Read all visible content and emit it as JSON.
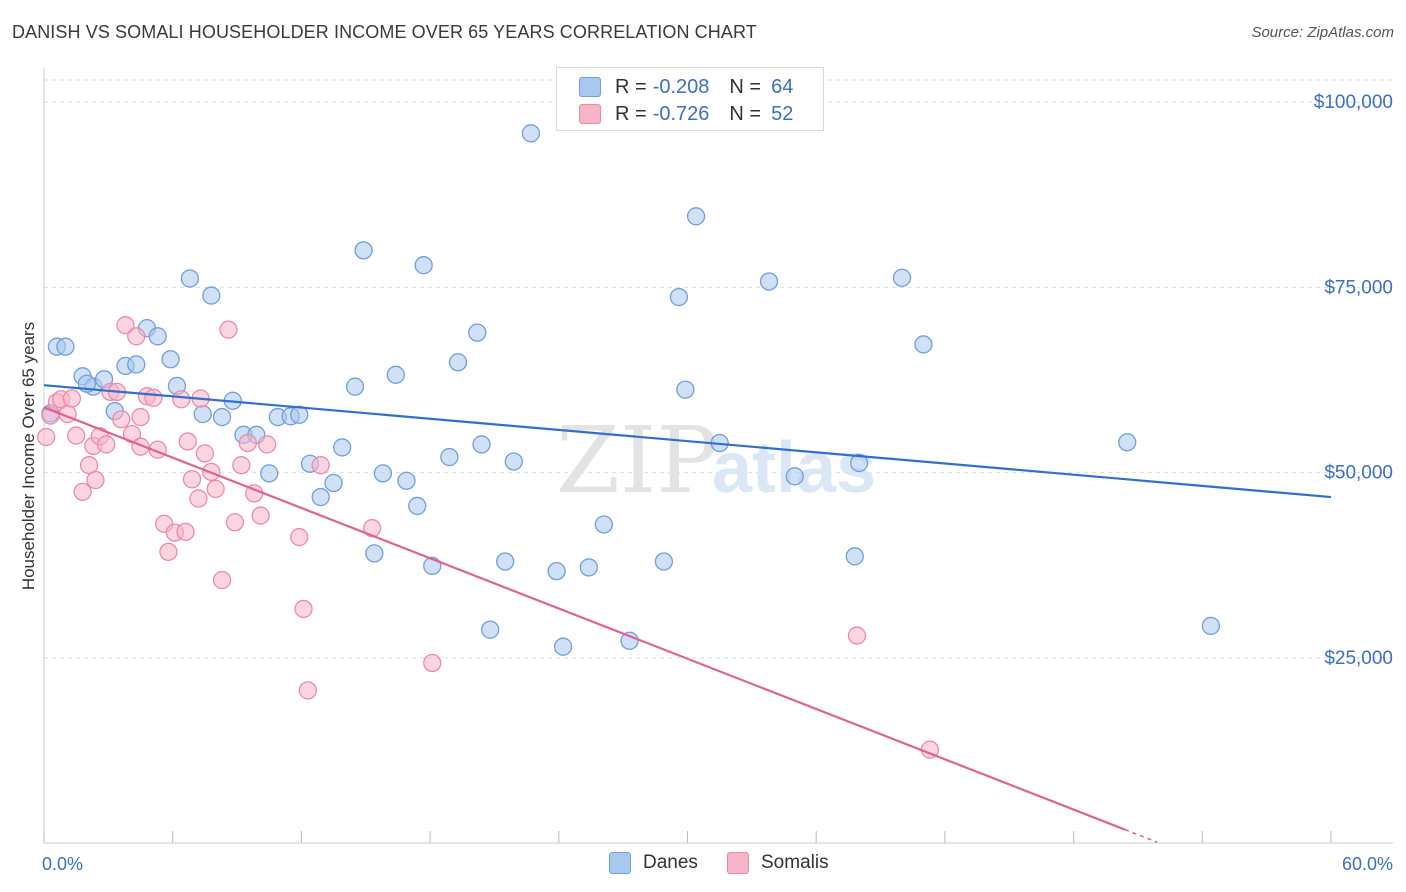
{
  "title": "DANISH VS SOMALI HOUSEHOLDER INCOME OVER 65 YEARS CORRELATION CHART",
  "source": "Source: ZipAtlas.com",
  "watermark": {
    "zip": "ZIP",
    "atlas": "atlas"
  },
  "legend_top": {
    "rows": [
      {
        "r_label": "R =",
        "r_value": "-0.208",
        "n_label": "N =",
        "n_value": "64",
        "color": "#a9c8ef"
      },
      {
        "r_label": "R =",
        "r_value": "-0.726",
        "n_label": "N =",
        "n_value": "52",
        "color": "#f7b5c8"
      }
    ]
  },
  "legend_bottom": [
    {
      "label": "Danes",
      "color": "#a9c8ef"
    },
    {
      "label": "Somalis",
      "color": "#f7b5c8"
    }
  ],
  "colors": {
    "danes_fill": "#a9c8ef",
    "danes_stroke": "#6f9fdc",
    "danes_line": "#3070cc",
    "somalis_fill": "#f7b5c8",
    "somalis_stroke": "#ee8aa8",
    "somalis_line": "#e0628f",
    "axis_label": "#3a6fc4",
    "grid": "#dddddd"
  },
  "chart_data": {
    "type": "scatter",
    "title": "DANISH VS SOMALI HOUSEHOLDER INCOME OVER 65 YEARS CORRELATION CHART",
    "xlabel": "",
    "ylabel": "Householder Income Over 65 years",
    "xlim": [
      0,
      60
    ],
    "ylim": [
      0,
      103000
    ],
    "x_tick_labels": [
      "0.0%",
      "60.0%"
    ],
    "y_ticks": [
      25000,
      50000,
      75000,
      100000
    ],
    "y_tick_labels": [
      "$25,000",
      "$50,000",
      "$75,000",
      "$100,000"
    ],
    "grid": true,
    "legend_position": "top-center",
    "series": [
      {
        "name": "Danes",
        "trend": {
          "x": [
            0,
            60
          ],
          "y": [
            61800,
            46700
          ]
        },
        "points": [
          [
            0.3,
            58000
          ],
          [
            0.6,
            67000
          ],
          [
            1.0,
            67000
          ],
          [
            1.8,
            63000
          ],
          [
            2.3,
            61600
          ],
          [
            2.8,
            62600
          ],
          [
            3.3,
            58300
          ],
          [
            3.8,
            64400
          ],
          [
            4.3,
            64600
          ],
          [
            4.8,
            69500
          ],
          [
            5.3,
            68400
          ],
          [
            5.9,
            65300
          ],
          [
            6.2,
            61700
          ],
          [
            6.8,
            76200
          ],
          [
            7.4,
            57900
          ],
          [
            7.8,
            73900
          ],
          [
            8.3,
            57500
          ],
          [
            8.8,
            59700
          ],
          [
            9.3,
            55100
          ],
          [
            9.9,
            55100
          ],
          [
            10.5,
            49900
          ],
          [
            10.9,
            57500
          ],
          [
            11.5,
            57600
          ],
          [
            11.9,
            57800
          ],
          [
            12.4,
            51200
          ],
          [
            12.9,
            46700
          ],
          [
            13.5,
            48600
          ],
          [
            13.9,
            53400
          ],
          [
            14.5,
            61600
          ],
          [
            14.9,
            80000
          ],
          [
            15.4,
            39100
          ],
          [
            15.8,
            49900
          ],
          [
            16.4,
            63200
          ],
          [
            16.9,
            48900
          ],
          [
            17.4,
            45500
          ],
          [
            17.7,
            78000
          ],
          [
            18.1,
            37400
          ],
          [
            18.9,
            52100
          ],
          [
            19.3,
            64900
          ],
          [
            20.2,
            68900
          ],
          [
            20.4,
            53800
          ],
          [
            20.8,
            28800
          ],
          [
            21.5,
            38000
          ],
          [
            21.9,
            51500
          ],
          [
            22.7,
            95800
          ],
          [
            23.9,
            36700
          ],
          [
            24.2,
            26500
          ],
          [
            25.4,
            37200
          ],
          [
            26.1,
            43000
          ],
          [
            27.3,
            27300
          ],
          [
            28.9,
            38000
          ],
          [
            29.6,
            73700
          ],
          [
            29.9,
            61200
          ],
          [
            30.4,
            84600
          ],
          [
            31.5,
            54000
          ],
          [
            33.8,
            75800
          ],
          [
            35.0,
            49500
          ],
          [
            37.8,
            38700
          ],
          [
            38.0,
            51300
          ],
          [
            40.0,
            76300
          ],
          [
            41.0,
            67300
          ],
          [
            50.5,
            54100
          ],
          [
            54.4,
            29300
          ],
          [
            2.0,
            62000
          ]
        ]
      },
      {
        "name": "Somalis",
        "trend": {
          "x": [
            0,
            50.4
          ],
          "y": [
            58800,
            1800
          ]
        },
        "points": [
          [
            0.1,
            54800
          ],
          [
            0.3,
            57700
          ],
          [
            0.6,
            59500
          ],
          [
            0.8,
            59900
          ],
          [
            1.1,
            57900
          ],
          [
            1.3,
            60000
          ],
          [
            1.5,
            55000
          ],
          [
            1.8,
            47400
          ],
          [
            2.1,
            51000
          ],
          [
            2.3,
            53600
          ],
          [
            2.6,
            54900
          ],
          [
            2.9,
            53800
          ],
          [
            3.1,
            60900
          ],
          [
            3.4,
            60900
          ],
          [
            3.6,
            57200
          ],
          [
            3.8,
            69900
          ],
          [
            4.1,
            55200
          ],
          [
            4.3,
            68400
          ],
          [
            4.5,
            53500
          ],
          [
            4.8,
            60300
          ],
          [
            5.1,
            60100
          ],
          [
            5.3,
            53100
          ],
          [
            5.6,
            43100
          ],
          [
            5.8,
            39300
          ],
          [
            6.1,
            41900
          ],
          [
            6.4,
            59900
          ],
          [
            6.7,
            54200
          ],
          [
            6.9,
            49100
          ],
          [
            7.2,
            46500
          ],
          [
            7.5,
            52600
          ],
          [
            7.8,
            50100
          ],
          [
            8.0,
            47800
          ],
          [
            8.3,
            35500
          ],
          [
            8.6,
            69300
          ],
          [
            8.9,
            43300
          ],
          [
            9.2,
            51000
          ],
          [
            9.5,
            54000
          ],
          [
            9.8,
            47200
          ],
          [
            10.1,
            44200
          ],
          [
            10.4,
            53800
          ],
          [
            11.9,
            41300
          ],
          [
            12.1,
            31600
          ],
          [
            12.3,
            20600
          ],
          [
            12.9,
            51000
          ],
          [
            15.3,
            42500
          ],
          [
            18.1,
            24300
          ],
          [
            37.9,
            28000
          ],
          [
            41.3,
            12600
          ],
          [
            2.4,
            49000
          ],
          [
            4.5,
            57500
          ],
          [
            6.6,
            42000
          ],
          [
            7.3,
            60000
          ]
        ]
      }
    ]
  }
}
